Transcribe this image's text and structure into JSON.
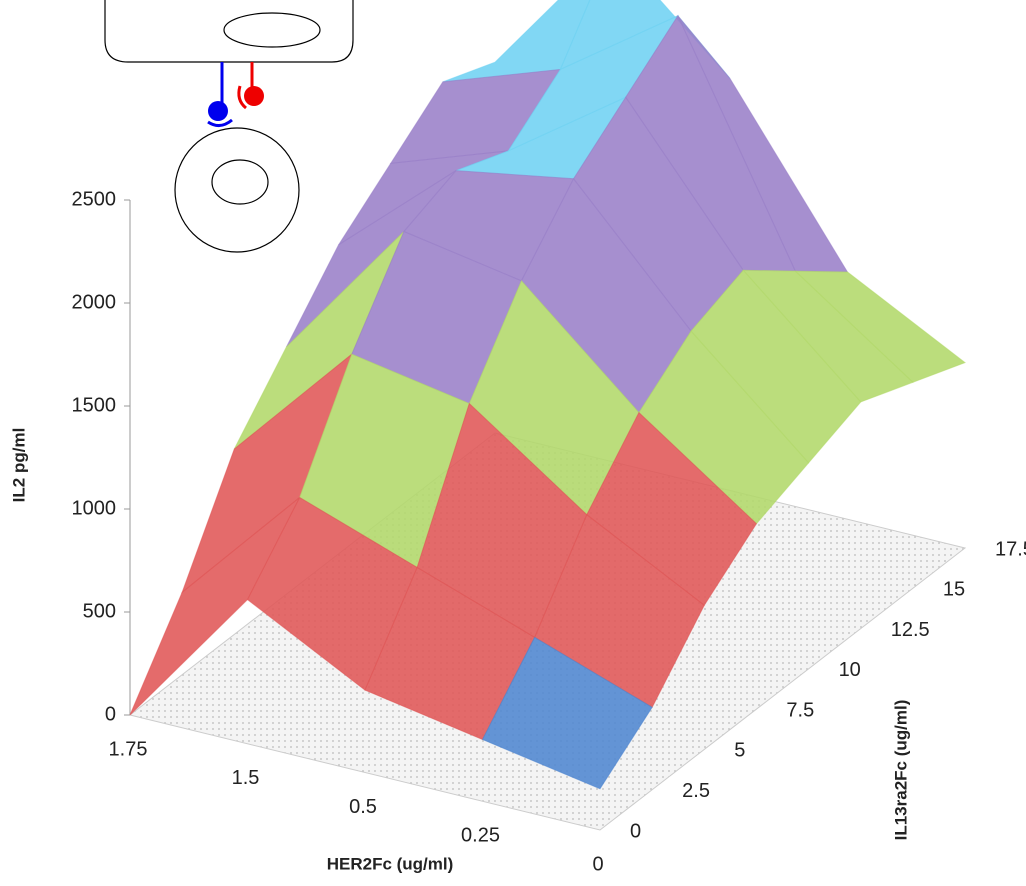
{
  "chart_data": {
    "type": "surface",
    "x_label": "HER2Fc (ug/ml)",
    "y_label": "IL13ra2Fc (ug/ml)",
    "z_label": "IL2 pg/ml",
    "x_categories": [
      "1.75",
      "1.5",
      "0.5",
      "0.25",
      "0"
    ],
    "y_categories": [
      "0",
      "2.5",
      "5",
      "7.5",
      "10",
      "12.5",
      "15",
      "17.5"
    ],
    "values": [
      [
        0,
        400,
        900,
        1200,
        1500,
        1700,
        1900,
        1800
      ],
      [
        700,
        1000,
        1500,
        1900,
        2000,
        1900,
        2100,
        2500
      ],
      [
        400,
        800,
        1400,
        1800,
        2100,
        2300,
        2500,
        2000
      ],
      [
        300,
        600,
        1000,
        1300,
        1500,
        1600,
        1400,
        1200
      ],
      [
        200,
        400,
        700,
        900,
        1000,
        1100,
        1000,
        900
      ]
    ],
    "zlim": [
      0,
      2500
    ],
    "zticks": [
      0,
      500,
      1000,
      1500,
      2000,
      2500
    ],
    "band_colors": [
      "#4f86d0",
      "#e05656",
      "#b2d86a",
      "#9a80c8",
      "#6fd2f2"
    ]
  }
}
